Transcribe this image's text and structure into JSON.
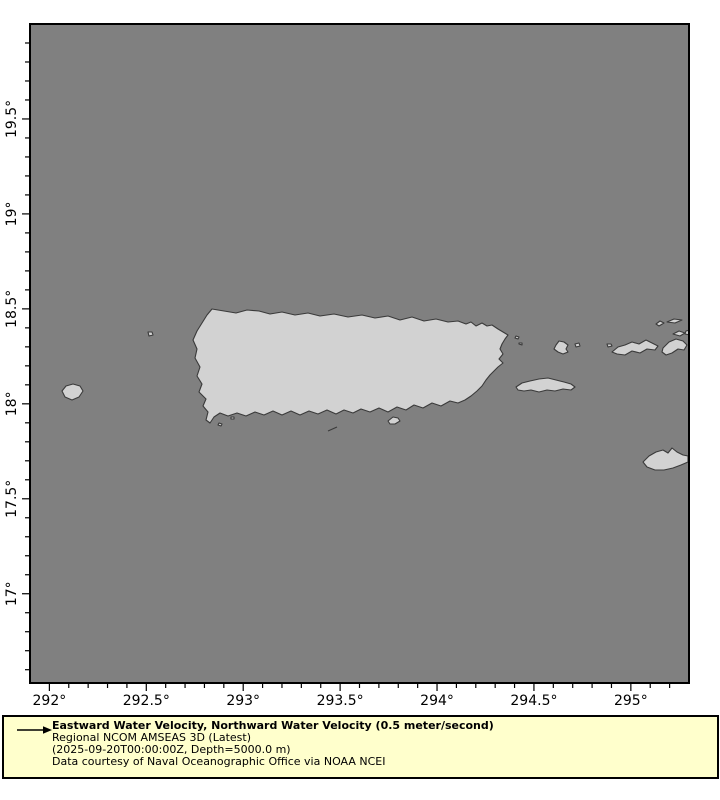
{
  "figure": {
    "background": "#ffffff",
    "ocean_color": "#808080",
    "land_color": "#d2d2d2",
    "coast_color": "#3a3a3a",
    "axis_color": "#000000"
  },
  "map": {
    "type": "geographic-map",
    "region": "Puerto Rico and Virgin Islands",
    "lon_min": 291.9,
    "lon_max": 295.3,
    "lat_min": 16.53,
    "lat_max": 20.0,
    "minor_tick_step_deg": 0.1,
    "x_ticks": [
      {
        "value": 292.0,
        "label": "292°"
      },
      {
        "value": 292.5,
        "label": "292.5°"
      },
      {
        "value": 293.0,
        "label": "293°"
      },
      {
        "value": 293.5,
        "label": "293.5°"
      },
      {
        "value": 294.0,
        "label": "294°"
      },
      {
        "value": 294.5,
        "label": "294.5°"
      },
      {
        "value": 295.0,
        "label": "295°"
      }
    ],
    "y_ticks": [
      {
        "value": 19.5,
        "label": "19.5°"
      },
      {
        "value": 19.0,
        "label": "19°"
      },
      {
        "value": 18.5,
        "label": "18.5°"
      },
      {
        "value": 18.0,
        "label": "18°"
      },
      {
        "value": 17.5,
        "label": "17.5°"
      },
      {
        "value": 17.0,
        "label": "17°"
      }
    ]
  },
  "legend": {
    "background": "#ffffcc",
    "arrow_icon": "vector-arrow-icon",
    "title": "Eastward Water Velocity, Northward Water Velocity (0.5 meter/second)",
    "line2": "Regional NCOM AMSEAS 3D (Latest)",
    "line3": "(2025-09-20T00:00:00Z, Depth=5000.0 m)",
    "line4": "Data courtesy of Naval Oceanographic Office via NOAA NCEI"
  }
}
